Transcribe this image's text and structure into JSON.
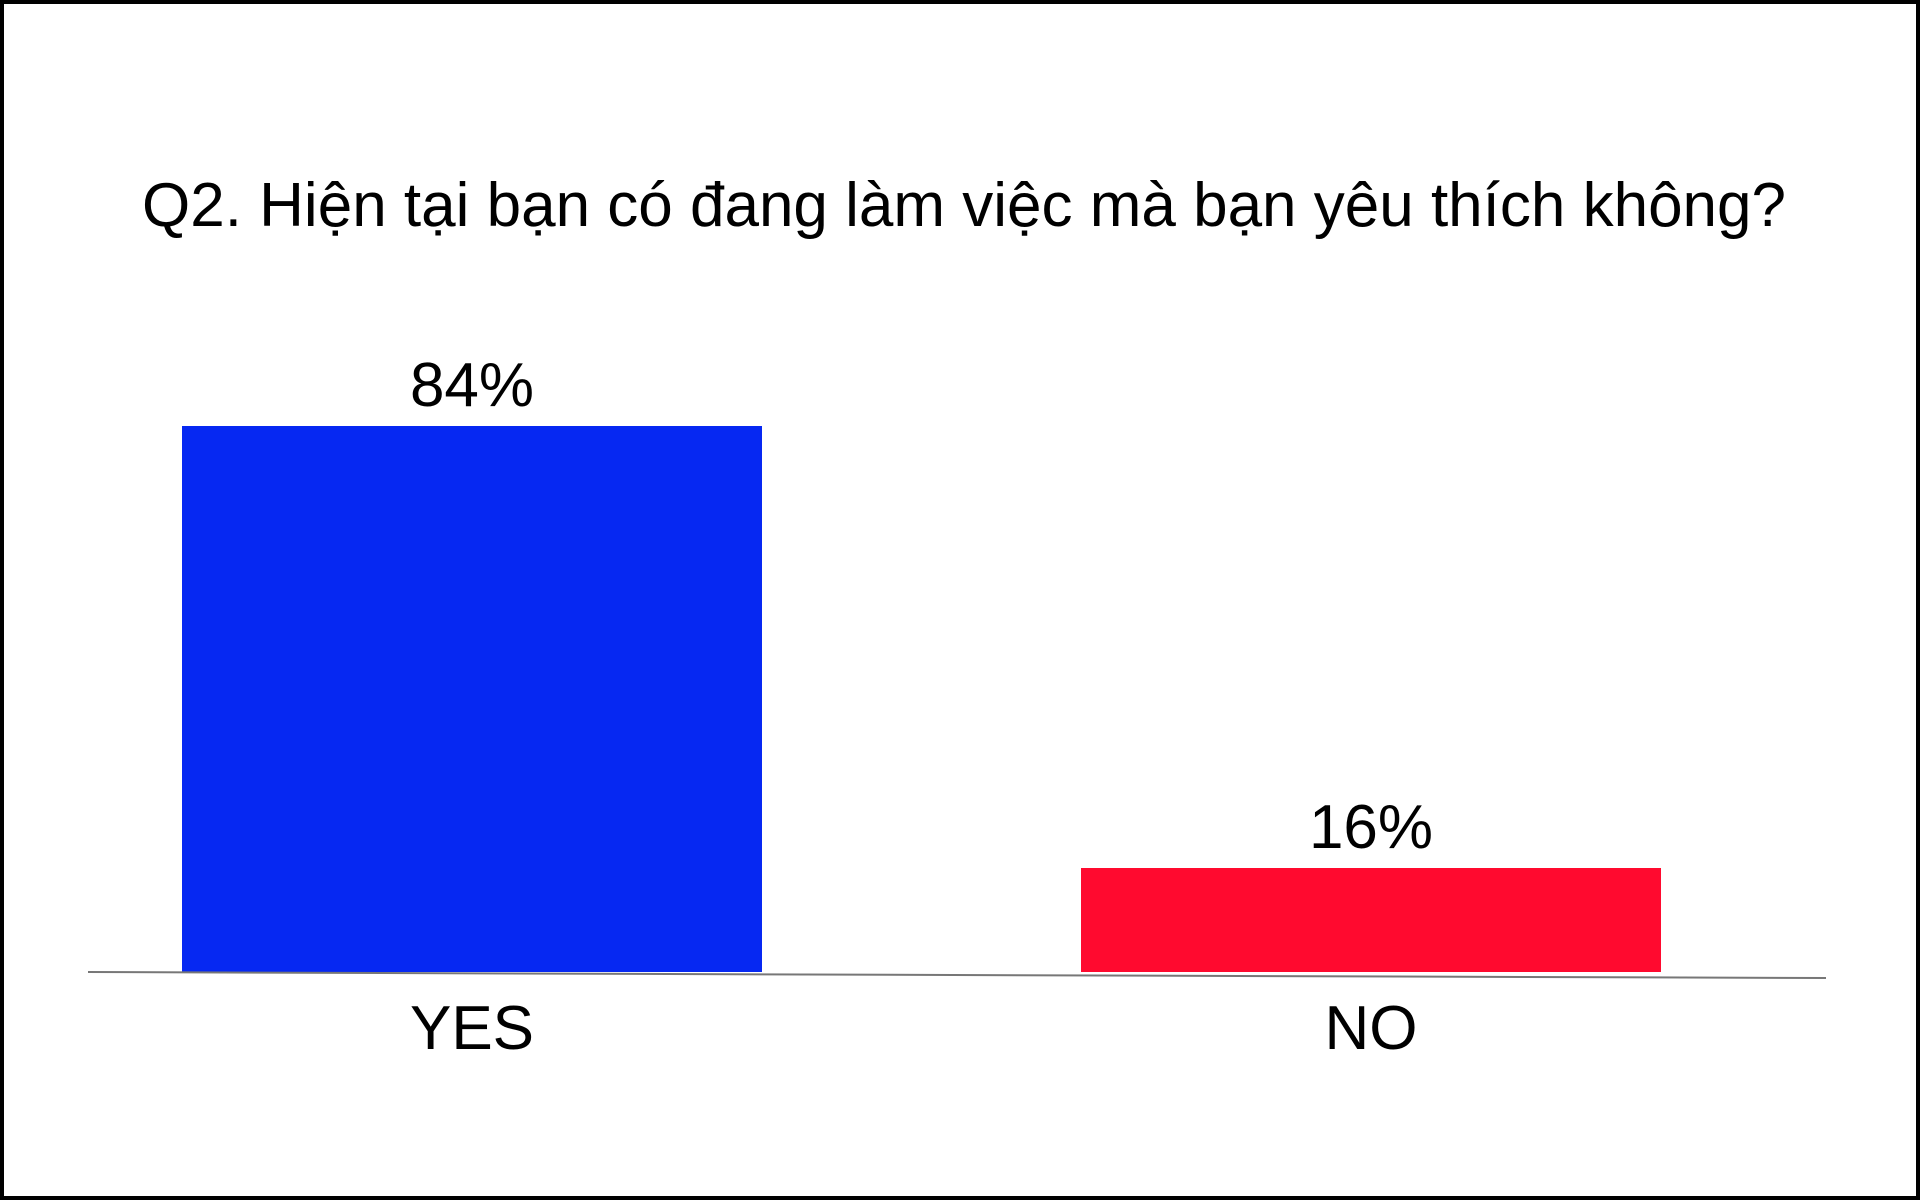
{
  "chart_data": {
    "type": "bar",
    "title": "Q2. Hiện tại bạn có đang làm việc mà bạn yêu thích không?",
    "categories": [
      "YES",
      "NO"
    ],
    "values": [
      84,
      16
    ],
    "value_labels": [
      "84%",
      "16%"
    ],
    "unit": "%",
    "colors": [
      "#0628F2",
      "#FF0A2F"
    ],
    "ylim": [
      0,
      100
    ],
    "grid": false,
    "legend": "none",
    "xlabel": "",
    "ylabel": ""
  }
}
